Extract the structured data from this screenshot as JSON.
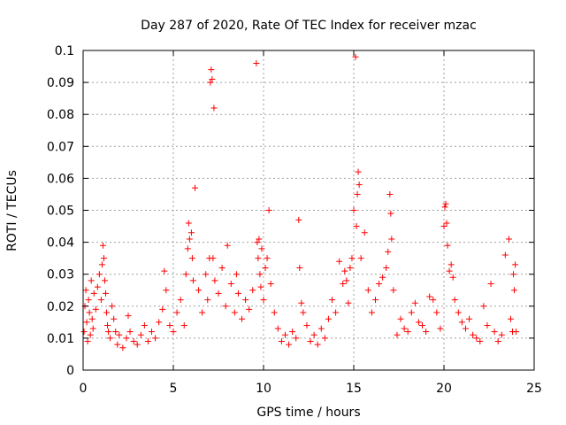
{
  "chart_data": {
    "type": "scatter",
    "title": "Day 287 of 2020, Rate Of TEC Index for receiver mzac",
    "xlabel": "GPS time / hours",
    "ylabel": "ROTI / TECUs",
    "xlim": [
      0,
      25
    ],
    "ylim": [
      0,
      0.1
    ],
    "x_ticks": [
      "0",
      "5",
      "10",
      "15",
      "20",
      "25"
    ],
    "y_ticks": [
      "0",
      "0.01",
      "0.02",
      "0.03",
      "0.04",
      "0.05",
      "0.06",
      "0.07",
      "0.08",
      "0.09",
      "0.1"
    ],
    "grid": true,
    "legend": "none",
    "marker": "plus",
    "series_color": "#ff0000",
    "x": [
      0.05,
      0.1,
      0.15,
      0.2,
      0.25,
      0.3,
      0.35,
      0.4,
      0.45,
      0.5,
      0.55,
      0.6,
      0.7,
      0.8,
      0.9,
      1.0,
      1.05,
      1.1,
      1.15,
      1.2,
      1.25,
      1.3,
      1.35,
      1.4,
      1.5,
      1.6,
      1.7,
      1.8,
      1.9,
      2.0,
      2.2,
      2.4,
      2.5,
      2.6,
      2.8,
      3.0,
      3.2,
      3.4,
      3.6,
      3.8,
      4.0,
      4.2,
      4.4,
      4.5,
      4.6,
      4.8,
      5.0,
      5.2,
      5.4,
      5.6,
      5.7,
      5.8,
      5.85,
      5.9,
      6.0,
      6.05,
      6.1,
      6.2,
      6.4,
      6.6,
      6.8,
      6.9,
      7.0,
      7.05,
      7.1,
      7.15,
      7.2,
      7.25,
      7.3,
      7.5,
      7.7,
      7.9,
      8.0,
      8.2,
      8.4,
      8.5,
      8.6,
      8.8,
      9.0,
      9.2,
      9.4,
      9.6,
      9.65,
      9.7,
      9.75,
      9.8,
      9.85,
      9.9,
      10.0,
      10.1,
      10.2,
      10.3,
      10.4,
      10.6,
      10.8,
      11.0,
      11.2,
      11.4,
      11.6,
      11.8,
      11.95,
      12.0,
      12.1,
      12.2,
      12.4,
      12.6,
      12.8,
      13.0,
      13.2,
      13.4,
      13.6,
      13.8,
      14.0,
      14.2,
      14.4,
      14.5,
      14.6,
      14.7,
      14.8,
      14.9,
      15.0,
      15.1,
      15.15,
      15.2,
      15.25,
      15.3,
      15.4,
      15.6,
      15.8,
      16.0,
      16.2,
      16.4,
      16.6,
      16.8,
      16.9,
      17.0,
      17.05,
      17.1,
      17.2,
      17.4,
      17.6,
      17.8,
      18.0,
      18.2,
      18.4,
      18.6,
      18.8,
      19.0,
      19.2,
      19.4,
      19.6,
      19.8,
      20.0,
      20.05,
      20.1,
      20.15,
      20.2,
      20.3,
      20.4,
      20.5,
      20.6,
      20.8,
      21.0,
      21.2,
      21.4,
      21.6,
      21.8,
      22.0,
      22.2,
      22.4,
      22.6,
      22.8,
      23.0,
      23.2,
      23.4,
      23.6,
      23.7,
      23.8,
      23.85,
      23.9,
      23.95,
      24.0
    ],
    "y": [
      0.012,
      0.02,
      0.025,
      0.015,
      0.009,
      0.022,
      0.018,
      0.011,
      0.028,
      0.016,
      0.013,
      0.024,
      0.019,
      0.026,
      0.03,
      0.022,
      0.033,
      0.039,
      0.035,
      0.028,
      0.024,
      0.018,
      0.014,
      0.012,
      0.01,
      0.02,
      0.016,
      0.012,
      0.008,
      0.011,
      0.007,
      0.01,
      0.017,
      0.012,
      0.009,
      0.008,
      0.011,
      0.014,
      0.009,
      0.012,
      0.01,
      0.015,
      0.019,
      0.031,
      0.025,
      0.014,
      0.012,
      0.018,
      0.022,
      0.014,
      0.03,
      0.038,
      0.046,
      0.041,
      0.043,
      0.035,
      0.028,
      0.057,
      0.025,
      0.018,
      0.03,
      0.022,
      0.035,
      0.09,
      0.094,
      0.091,
      0.035,
      0.082,
      0.028,
      0.024,
      0.032,
      0.02,
      0.039,
      0.027,
      0.018,
      0.03,
      0.024,
      0.016,
      0.022,
      0.019,
      0.025,
      0.096,
      0.04,
      0.035,
      0.041,
      0.03,
      0.026,
      0.038,
      0.022,
      0.032,
      0.035,
      0.05,
      0.027,
      0.018,
      0.013,
      0.009,
      0.011,
      0.008,
      0.012,
      0.01,
      0.047,
      0.032,
      0.021,
      0.018,
      0.014,
      0.009,
      0.011,
      0.008,
      0.013,
      0.01,
      0.016,
      0.022,
      0.018,
      0.034,
      0.027,
      0.031,
      0.028,
      0.021,
      0.032,
      0.035,
      0.05,
      0.098,
      0.045,
      0.055,
      0.062,
      0.058,
      0.035,
      0.043,
      0.025,
      0.018,
      0.022,
      0.027,
      0.029,
      0.032,
      0.037,
      0.055,
      0.049,
      0.041,
      0.025,
      0.011,
      0.016,
      0.013,
      0.012,
      0.018,
      0.021,
      0.015,
      0.014,
      0.012,
      0.023,
      0.022,
      0.018,
      0.013,
      0.045,
      0.051,
      0.052,
      0.046,
      0.039,
      0.031,
      0.033,
      0.029,
      0.022,
      0.018,
      0.015,
      0.013,
      0.016,
      0.011,
      0.01,
      0.009,
      0.02,
      0.014,
      0.027,
      0.012,
      0.009,
      0.011,
      0.036,
      0.041,
      0.016,
      0.012,
      0.03,
      0.025,
      0.033,
      0.012
    ]
  }
}
